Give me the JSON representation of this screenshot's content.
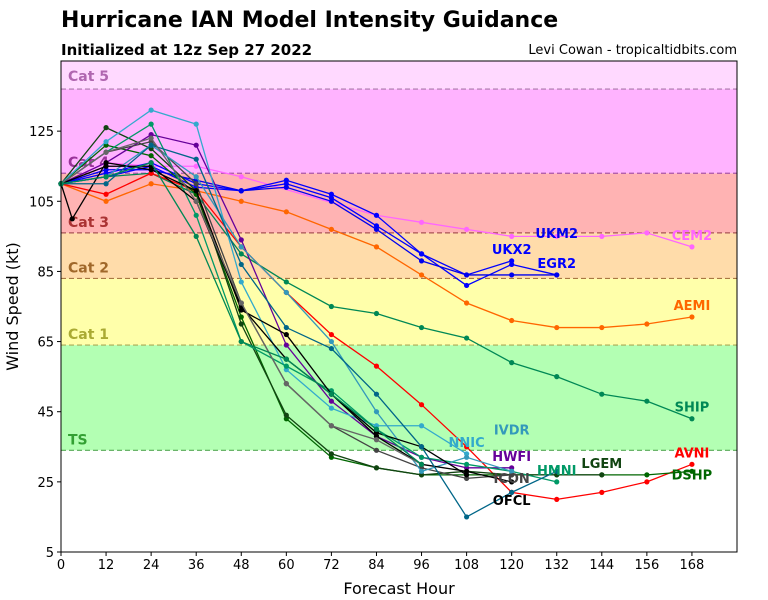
{
  "chart_data": {
    "type": "line",
    "title": "Hurricane IAN Model Intensity Guidance",
    "subtitle": "Initialized at 12z Sep 27 2022",
    "credit": "Levi Cowan - tropicaltidbits.com",
    "xlabel": "Forecast Hour",
    "ylabel": "Wind Speed (kt)",
    "xlim": [
      0,
      180
    ],
    "ylim": [
      5,
      145
    ],
    "xticks": [
      0,
      12,
      24,
      36,
      48,
      60,
      72,
      84,
      96,
      108,
      120,
      132,
      144,
      156,
      168
    ],
    "yticks": [
      5,
      25,
      45,
      65,
      85,
      105,
      125
    ],
    "bands": [
      {
        "label": "TS",
        "from": 34,
        "to": 64,
        "color": "#b3ffb3",
        "text_color": "#33a033",
        "line": "#55aa55"
      },
      {
        "label": "Cat 1",
        "from": 64,
        "to": 83,
        "color": "#ffffaa",
        "text_color": "#aaaa33",
        "line": "#aaaa55"
      },
      {
        "label": "Cat 2",
        "from": 83,
        "to": 96,
        "color": "#ffdcaa",
        "text_color": "#a0682a",
        "line": "#aa7744"
      },
      {
        "label": "Cat 3",
        "from": 96,
        "to": 113,
        "color": "#ffb3b3",
        "text_color": "#aa3333",
        "line": "#aa5555"
      },
      {
        "label": "Cat 4",
        "from": 113,
        "to": 137,
        "color": "#ffb3ff",
        "text_color": "#993399",
        "line": "#aa55aa"
      },
      {
        "label": "Cat 5",
        "from": 137,
        "to": 145,
        "color": "#ffd9ff",
        "text_color": "#b066b0",
        "line": "#aa77aa"
      }
    ],
    "series": [
      {
        "name": "CEM2",
        "color": "#ff66ff",
        "x": [
          0,
          12,
          24,
          36,
          48,
          84,
          96,
          108,
          120,
          132,
          144,
          156,
          168
        ],
        "y": [
          110,
          116,
          115,
          115,
          112,
          101,
          99,
          97,
          95,
          95,
          95,
          96,
          92
        ]
      },
      {
        "name": "AEMI",
        "color": "#ff6600",
        "x": [
          0,
          12,
          24,
          36,
          48,
          60,
          72,
          84,
          96,
          108,
          120,
          132,
          144,
          156,
          168
        ],
        "y": [
          110,
          105,
          110,
          108,
          105,
          102,
          97,
          92,
          84,
          76,
          71,
          69,
          69,
          70,
          72
        ]
      },
      {
        "name": "SHIP",
        "color": "#008855",
        "x": [
          0,
          12,
          24,
          36,
          48,
          60,
          72,
          84,
          96,
          108,
          120,
          132,
          144,
          156,
          168
        ],
        "y": [
          110,
          112,
          113,
          107,
          90,
          82,
          75,
          73,
          69,
          66,
          59,
          55,
          50,
          48,
          43
        ]
      },
      {
        "name": "UKX2",
        "color": "#0000ff",
        "x": [
          0,
          12,
          24,
          36,
          48,
          60,
          72,
          84,
          96,
          108,
          120
        ],
        "y": [
          110,
          113,
          116,
          110,
          108,
          110,
          106,
          98,
          90,
          84,
          88
        ]
      },
      {
        "name": "EGR2",
        "color": "#0000ff",
        "x": [
          0,
          12,
          24,
          36,
          48,
          60,
          72,
          84,
          96,
          108,
          120,
          132
        ],
        "y": [
          110,
          112,
          115,
          109,
          108,
          111,
          107,
          101,
          90,
          81,
          87,
          84
        ]
      },
      {
        "name": "UKM2",
        "color": "#0000ee",
        "x": [
          0,
          12,
          24,
          36,
          48,
          60,
          72,
          84,
          96,
          108,
          120,
          132
        ],
        "y": [
          110,
          114,
          114,
          111,
          108,
          109,
          105,
          97,
          88,
          84,
          84,
          84
        ]
      },
      {
        "name": "AVNI",
        "color": "#ff0000",
        "x": [
          0,
          12,
          24,
          36,
          48,
          60,
          72,
          84,
          96,
          108,
          120,
          132,
          144,
          156,
          168
        ],
        "y": [
          110,
          107,
          113,
          108,
          92,
          79,
          67,
          58,
          47,
          35,
          22,
          20,
          22,
          25,
          30
        ]
      },
      {
        "name": "DSHP",
        "color": "#006600",
        "x": [
          0,
          12,
          24,
          36,
          48,
          60,
          72,
          84,
          96,
          108,
          120,
          132,
          144,
          156,
          168
        ],
        "y": [
          110,
          121,
          118,
          107,
          72,
          43,
          32,
          29,
          27,
          27,
          27,
          27,
          27,
          27,
          28
        ]
      },
      {
        "name": "LGEM",
        "color": "#114411",
        "x": [
          0,
          12,
          24,
          36,
          48,
          60,
          72,
          84,
          96,
          108,
          120,
          132,
          144
        ],
        "y": [
          110,
          126,
          120,
          108,
          70,
          44,
          33,
          29,
          27,
          28,
          27,
          27,
          27
        ]
      },
      {
        "name": "HWFI",
        "color": "#660099",
        "x": [
          0,
          12,
          24,
          36,
          48,
          60,
          72,
          84,
          96,
          108,
          120
        ],
        "y": [
          110,
          116,
          124,
          121,
          94,
          64,
          48,
          38,
          32,
          29,
          29
        ]
      },
      {
        "name": "NNIC",
        "color": "#33aacc",
        "x": [
          0,
          12,
          24,
          36,
          48,
          60,
          72,
          84,
          96,
          108
        ],
        "y": [
          110,
          122,
          131,
          127,
          82,
          57,
          46,
          41,
          41,
          33
        ]
      },
      {
        "name": "HMNI",
        "color": "#009966",
        "x": [
          0,
          12,
          24,
          36,
          48,
          60,
          72,
          84,
          96,
          108,
          120,
          132
        ],
        "y": [
          110,
          119,
          127,
          101,
          65,
          58,
          51,
          40,
          32,
          30,
          28,
          25
        ]
      },
      {
        "name": "ICON",
        "color": "#444444",
        "x": [
          0,
          12,
          24,
          36,
          48,
          60,
          72,
          84,
          96,
          108,
          120
        ],
        "y": [
          110,
          119,
          122,
          110,
          76,
          53,
          41,
          34,
          29,
          26,
          27
        ]
      },
      {
        "name": "IVDR",
        "color": "#3399bb",
        "x": [
          0,
          12,
          24,
          36,
          48,
          60,
          72,
          84,
          96,
          108,
          120
        ],
        "y": [
          110,
          112,
          121,
          112,
          92,
          79,
          65,
          45,
          28,
          32,
          28
        ]
      },
      {
        "name": "OFCL",
        "color": "#000000",
        "x": [
          0,
          12,
          24,
          36,
          48,
          60,
          72,
          84,
          96,
          108,
          120
        ],
        "y": [
          110,
          115,
          115,
          105,
          75,
          60,
          50,
          38,
          30,
          28,
          25
        ]
      },
      {
        "name": "",
        "color": "#000000",
        "x": [
          0,
          3,
          12,
          24,
          36,
          48,
          60,
          72,
          84,
          96,
          108
        ],
        "y": [
          110,
          100,
          116,
          114,
          108,
          74,
          67,
          50,
          39,
          35,
          27
        ]
      },
      {
        "name": "",
        "color": "#006688",
        "x": [
          0,
          12,
          24,
          36,
          48,
          60,
          72,
          84,
          96,
          108,
          120,
          132
        ],
        "y": [
          110,
          110,
          121,
          117,
          87,
          69,
          63,
          50,
          35,
          15,
          22,
          28
        ]
      },
      {
        "name": "",
        "color": "#666666",
        "x": [
          0,
          12,
          24,
          36,
          48,
          60,
          72,
          84,
          96
        ],
        "y": [
          110,
          119,
          123,
          105,
          76,
          53,
          41,
          37,
          30
        ]
      },
      {
        "name": "",
        "color": "#008855",
        "x": [
          0,
          12,
          24,
          36,
          48,
          60,
          72,
          84,
          96
        ],
        "y": [
          110,
          112,
          116,
          95,
          65,
          60,
          50,
          40,
          30
        ]
      }
    ]
  }
}
